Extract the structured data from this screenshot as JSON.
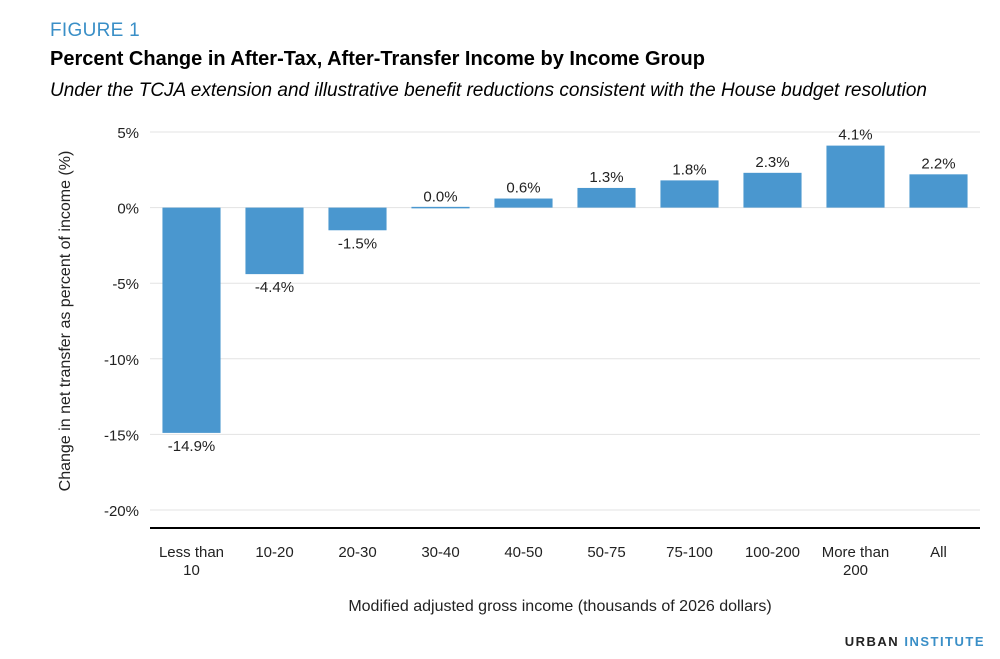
{
  "figure_label": "FIGURE 1",
  "chart_data": {
    "type": "bar",
    "title": "Percent Change in After-Tax, After-Transfer Income by Income Group",
    "subtitle": "Under the TCJA extension and illustrative benefit reductions consistent with the House budget resolution",
    "xlabel": "Modified adjusted gross income (thousands of 2026 dollars)",
    "ylabel": "Change in net transfer as percent of income (%)",
    "categories": [
      "Less than 10",
      "10-20",
      "20-30",
      "30-40",
      "40-50",
      "50-75",
      "75-100",
      "100-200",
      "More than 200",
      "All"
    ],
    "category_lines": [
      [
        "Less than",
        "10"
      ],
      [
        "10-20"
      ],
      [
        "20-30"
      ],
      [
        "30-40"
      ],
      [
        "40-50"
      ],
      [
        "50-75"
      ],
      [
        "75-100"
      ],
      [
        "100-200"
      ],
      [
        "More than",
        "200"
      ],
      [
        "All"
      ]
    ],
    "values": [
      -14.9,
      -4.4,
      -1.5,
      0.0,
      0.6,
      1.3,
      1.8,
      2.3,
      4.1,
      2.2
    ],
    "data_labels": [
      "-14.9%",
      "-4.4%",
      "-1.5%",
      "0.0%",
      "0.6%",
      "1.3%",
      "1.8%",
      "2.3%",
      "4.1%",
      "2.2%"
    ],
    "ylim": [
      -20,
      5
    ],
    "yticks": [
      5,
      0,
      -5,
      -10,
      -15,
      -20
    ],
    "ytick_labels": [
      "5%",
      "0%",
      "-5%",
      "-10%",
      "-15%",
      "-20%"
    ],
    "grid": true,
    "bar_color": "#4a97cf",
    "grid_color": "#e3e3e3"
  },
  "brand": {
    "part1": "URBAN",
    "part2": "INSTITUTE"
  }
}
